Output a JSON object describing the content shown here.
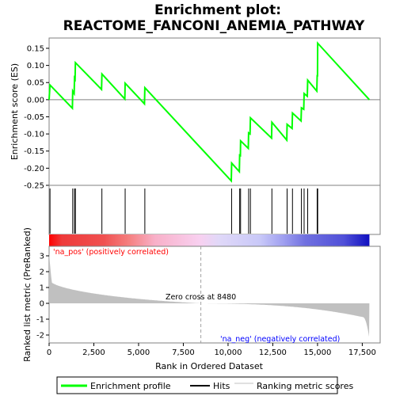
{
  "chart_data": {
    "type": "line",
    "title_line1": "Enrichment plot:",
    "title_line2": "REACTOME_FANCONI_ANEMIA_PATHWAY",
    "xlabel": "Rank in Ordered Dataset",
    "ylabel_top": "Enrichment score (ES)",
    "ylabel_bottom": "Ranked list metric (PreRanked)",
    "xlim": [
      0,
      18500
    ],
    "x_ticks": [
      0,
      2500,
      5000,
      7500,
      10000,
      12500,
      15000,
      17500
    ],
    "x_tick_labels": [
      "0",
      "2,500",
      "5,000",
      "7,500",
      "10,000",
      "12,500",
      "15,000",
      "17,500"
    ],
    "es_ylim": [
      -0.25,
      0.18
    ],
    "es_ticks": [
      -0.25,
      -0.2,
      -0.15,
      -0.1,
      -0.05,
      0.0,
      0.05,
      0.1,
      0.15
    ],
    "es_tick_labels": [
      "-0.25",
      "-0.20",
      "-0.15",
      "-0.10",
      "-0.05",
      "0.00",
      "0.05",
      "0.10",
      "0.15"
    ],
    "metric_ylim": [
      -2.5,
      3.6
    ],
    "metric_ticks": [
      -2,
      -1,
      0,
      1,
      2,
      3
    ],
    "metric_tick_labels": [
      "-2",
      "-1",
      "0",
      "1",
      "2",
      "3"
    ],
    "n_genes": 17900,
    "zero_cross": 8480,
    "zero_cross_label": "Zero cross at 8480",
    "pos_label": "'na_pos' (positively correlated)",
    "neg_label": "'na_neg' (negatively correlated)",
    "hits": [
      50,
      1320,
      1420,
      1470,
      2950,
      4250,
      5350,
      10200,
      10650,
      10700,
      11150,
      11250,
      12450,
      13300,
      13600,
      14100,
      14250,
      14450,
      14980,
      15010
    ],
    "es_profile": [
      [
        0,
        0.0
      ],
      [
        50,
        0.043
      ],
      [
        1300,
        -0.025
      ],
      [
        1320,
        0.025
      ],
      [
        1400,
        0.018
      ],
      [
        1420,
        0.063
      ],
      [
        1450,
        0.06
      ],
      [
        1470,
        0.108
      ],
      [
        2930,
        0.03
      ],
      [
        2950,
        0.075
      ],
      [
        4230,
        0.002
      ],
      [
        4250,
        0.048
      ],
      [
        5330,
        -0.012
      ],
      [
        5350,
        0.035
      ],
      [
        10180,
        -0.237
      ],
      [
        10200,
        -0.185
      ],
      [
        10630,
        -0.21
      ],
      [
        10650,
        -0.162
      ],
      [
        10690,
        -0.163
      ],
      [
        10700,
        -0.12
      ],
      [
        11130,
        -0.142
      ],
      [
        11150,
        -0.097
      ],
      [
        11230,
        -0.1
      ],
      [
        11250,
        -0.053
      ],
      [
        12430,
        -0.112
      ],
      [
        12450,
        -0.066
      ],
      [
        13280,
        -0.118
      ],
      [
        13300,
        -0.072
      ],
      [
        13580,
        -0.084
      ],
      [
        13600,
        -0.039
      ],
      [
        14080,
        -0.062
      ],
      [
        14100,
        -0.024
      ],
      [
        14230,
        -0.028
      ],
      [
        14250,
        0.018
      ],
      [
        14430,
        0.01
      ],
      [
        14450,
        0.057
      ],
      [
        14960,
        0.025
      ],
      [
        14980,
        0.07
      ],
      [
        15000,
        0.07
      ],
      [
        15010,
        0.165
      ],
      [
        17900,
        0.0
      ]
    ],
    "series": [
      {
        "name": "Enrichment profile",
        "color": "#00ff00"
      },
      {
        "name": "Hits",
        "color": "#000000"
      },
      {
        "name": "Ranking metric scores",
        "color": "#c0c0c0"
      }
    ],
    "colors": {
      "pos_label": "#ff0000",
      "neg_label": "#0000ff",
      "es_line": "#00ff00",
      "metric_fill": "#c0c0c0"
    }
  }
}
